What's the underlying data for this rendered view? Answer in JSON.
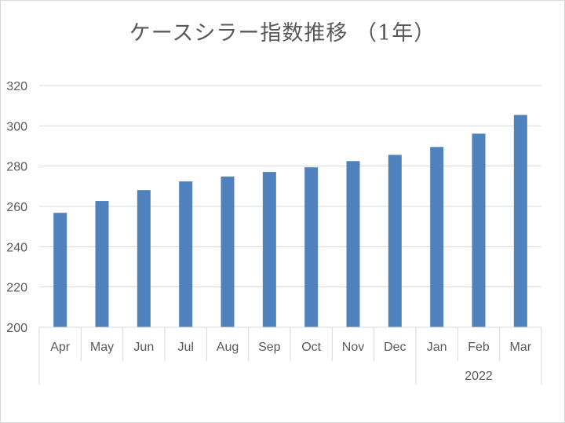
{
  "chart_data": {
    "type": "bar",
    "title": "ケースシラー指数推移 （1年）",
    "xlabel": "",
    "ylabel": "",
    "categories": [
      "Apr",
      "May",
      "Jun",
      "Jul",
      "Aug",
      "Sep",
      "Oct",
      "Nov",
      "Dec",
      "Jan",
      "Feb",
      "Mar"
    ],
    "group_labels": [
      {
        "label": "",
        "from": "Apr",
        "to": "Dec"
      },
      {
        "label": "2022",
        "from": "Jan",
        "to": "Mar"
      }
    ],
    "values": [
      256.8,
      262.7,
      268.1,
      272.4,
      274.8,
      277.1,
      279.4,
      282.5,
      285.6,
      289.5,
      296.1,
      305.4
    ],
    "ylim": [
      200,
      320
    ],
    "yticks": [
      200,
      220,
      240,
      260,
      280,
      300,
      320
    ],
    "grid": true,
    "legend": "none",
    "colors": {
      "bar": "#4f81bd",
      "grid": "#d9d9d9",
      "text": "#595959"
    }
  }
}
